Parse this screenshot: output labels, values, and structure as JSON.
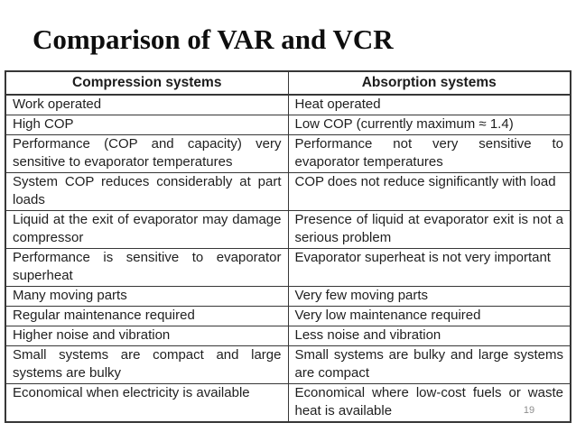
{
  "slide": {
    "title": "Comparison of VAR and VCR",
    "page_number": "19"
  },
  "table": {
    "headers": [
      "Compression systems",
      "Absorption systems"
    ],
    "rows": [
      [
        "Work operated",
        "Heat operated"
      ],
      [
        "High COP",
        "Low COP (currently maximum ≈ 1.4)"
      ],
      [
        "Performance (COP and capacity) very sensitive to evaporator temperatures",
        "Performance not very sensitive to evaporator temperatures"
      ],
      [
        "System COP reduces considerably at part loads",
        "COP does not reduce significantly with load"
      ],
      [
        "Liquid at the exit of evaporator may damage compressor",
        "Presence of liquid at evaporator exit is not a serious problem"
      ],
      [
        "Performance is sensitive to evaporator superheat",
        "Evaporator superheat is not very important"
      ],
      [
        "Many moving parts",
        "Very few moving parts"
      ],
      [
        "Regular maintenance required",
        "Very low maintenance required"
      ],
      [
        "Higher noise and vibration",
        "Less noise and vibration"
      ],
      [
        "Small systems are compact and large systems are bulky",
        "Small systems are bulky and large systems are compact"
      ],
      [
        "Economical when electricity is available",
        "Economical where low-cost fuels or waste heat is available"
      ]
    ]
  }
}
